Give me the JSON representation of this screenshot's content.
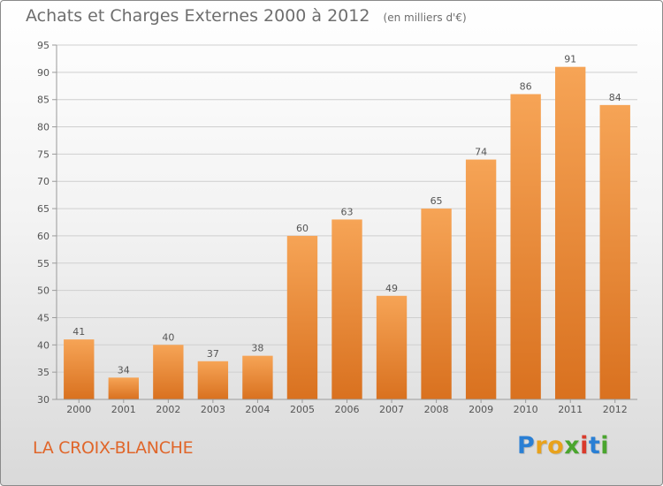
{
  "header": {
    "title": "Achats et Charges Externes 2000 à 2012",
    "unit": "(en milliers d'€)"
  },
  "commune": "LA CROIX-BLANCHE",
  "brand": {
    "letters": [
      "P",
      "r",
      "o",
      "x",
      "i",
      "t",
      "i"
    ],
    "colors": [
      "#2a7fd4",
      "#e8a21c",
      "#e8a21c",
      "#4aa52e",
      "#d93a2b",
      "#2a7fd4",
      "#4aa52e"
    ]
  },
  "colors": {
    "bar_top": "#f6a456",
    "bar_bottom": "#d9711f",
    "grid": "#cfcfcf",
    "text": "#555555"
  },
  "chart_data": {
    "type": "bar",
    "title": "Achats et Charges Externes 2000 à 2012",
    "ylabel": "",
    "xlabel": "",
    "categories": [
      "2000",
      "2001",
      "2002",
      "2003",
      "2004",
      "2005",
      "2006",
      "2007",
      "2008",
      "2009",
      "2010",
      "2011",
      "2012"
    ],
    "values": [
      41,
      34,
      40,
      37,
      38,
      60,
      63,
      49,
      65,
      74,
      86,
      91,
      84
    ],
    "ylim": [
      30,
      95
    ],
    "yticks": [
      30,
      35,
      40,
      45,
      50,
      55,
      60,
      65,
      70,
      75,
      80,
      85,
      90,
      95
    ],
    "grid": true,
    "data_labels": true
  }
}
